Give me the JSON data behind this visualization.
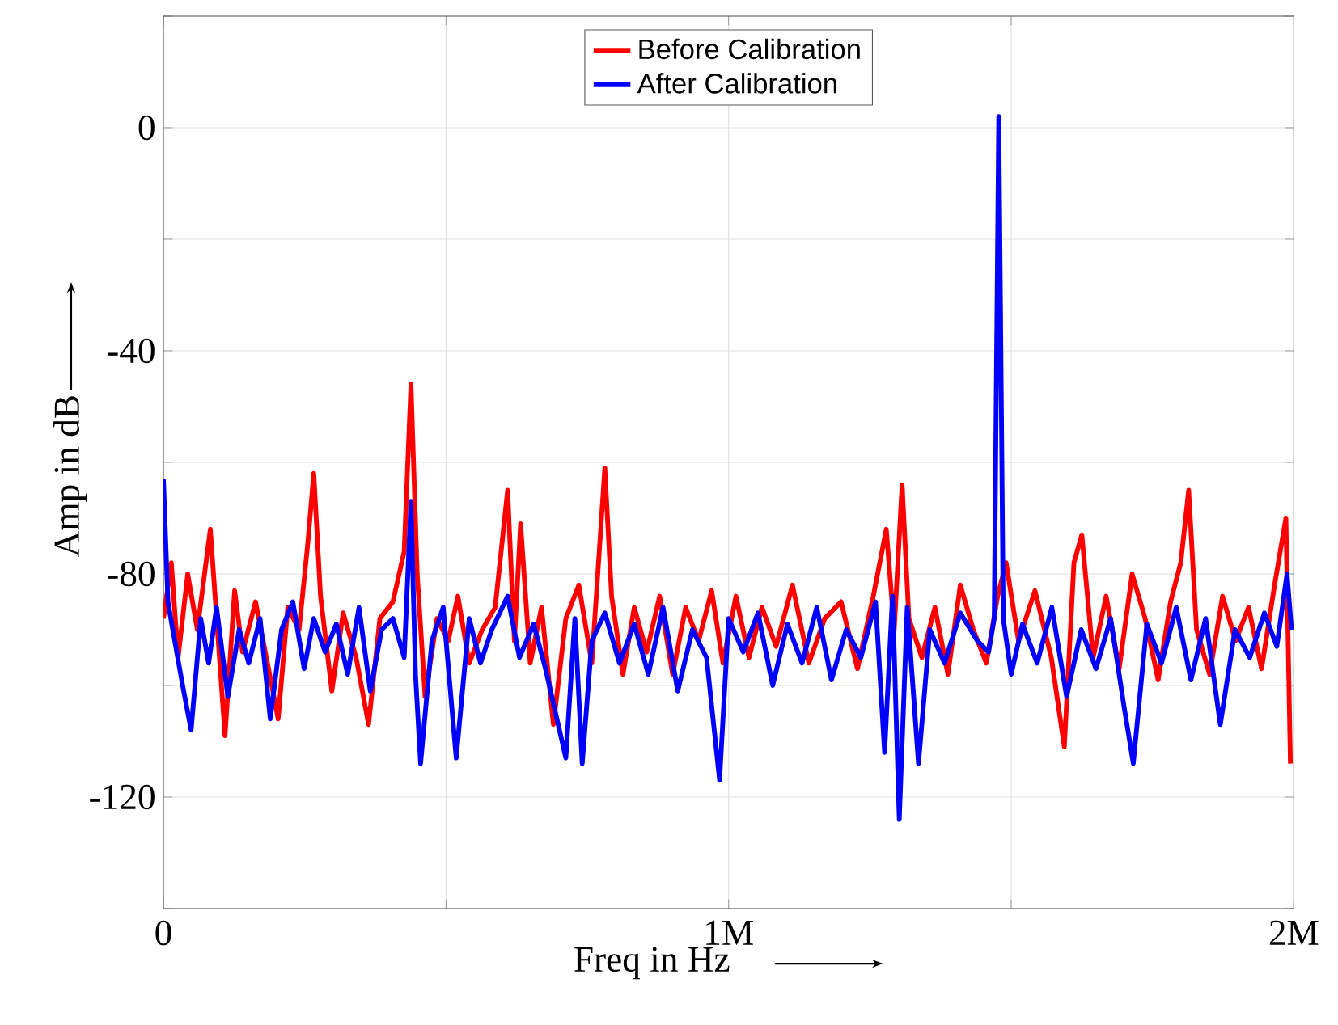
{
  "chart_data": {
    "type": "line",
    "xlabel": "Freq in Hz",
    "ylabel": "Amp in dB",
    "xlim": [
      0,
      2000000
    ],
    "ylim": [
      -140,
      20
    ],
    "xticks": [
      {
        "value": 0,
        "label": "0"
      },
      {
        "value": 500000,
        "label": null
      },
      {
        "value": 1000000,
        "label": "1M"
      },
      {
        "value": 1500000,
        "label": null
      },
      {
        "value": 2000000,
        "label": "2M"
      }
    ],
    "yticks": [
      {
        "value": -140,
        "label": null
      },
      {
        "value": -120,
        "label": "-120"
      },
      {
        "value": -100,
        "label": null
      },
      {
        "value": -80,
        "label": "-80"
      },
      {
        "value": -60,
        "label": null
      },
      {
        "value": -40,
        "label": "-40"
      },
      {
        "value": -20,
        "label": null
      },
      {
        "value": 0,
        "label": "0"
      },
      {
        "value": 20,
        "label": null
      }
    ],
    "grid": true,
    "legend": "top",
    "marker": "none",
    "line_style": "solid",
    "series": [
      {
        "name": "Before Calibration",
        "color": "#ff0000",
        "x": [
          0,
          14000,
          26000,
          43000,
          60000,
          83000,
          97000,
          109000,
          126000,
          140000,
          163000,
          186000,
          203000,
          220000,
          240000,
          255000,
          266000,
          278000,
          298000,
          318000,
          341000,
          363000,
          383000,
          406000,
          426000,
          438000,
          449000,
          463000,
          484000,
          504000,
          521000,
          541000,
          564000,
          587000,
          609000,
          621000,
          632000,
          649000,
          669000,
          690000,
          712000,
          735000,
          758000,
          781000,
          793000,
          813000,
          833000,
          855000,
          878000,
          901000,
          924000,
          947000,
          970000,
          990000,
          1013000,
          1036000,
          1059000,
          1084000,
          1113000,
          1142000,
          1170000,
          1199000,
          1228000,
          1256000,
          1279000,
          1293000,
          1307000,
          1319000,
          1342000,
          1365000,
          1388000,
          1410000,
          1433000,
          1456000,
          1476000,
          1491000,
          1513000,
          1542000,
          1571000,
          1594000,
          1611000,
          1625000,
          1645000,
          1668000,
          1691000,
          1714000,
          1737000,
          1760000,
          1782000,
          1800000,
          1814000,
          1828000,
          1851000,
          1874000,
          1897000,
          1920000,
          1943000,
          1966000,
          1986000,
          1994000
        ],
        "values": [
          -88,
          -78,
          -95,
          -80,
          -90,
          -72,
          -92,
          -109,
          -83,
          -94,
          -85,
          -97,
          -106,
          -86,
          -90,
          -75,
          -62,
          -84,
          -101,
          -87,
          -95,
          -107,
          -88,
          -85,
          -76,
          -46,
          -80,
          -102,
          -88,
          -92,
          -84,
          -96,
          -90,
          -86,
          -65,
          -92,
          -71,
          -96,
          -86,
          -107,
          -88,
          -82,
          -96,
          -61,
          -84,
          -98,
          -86,
          -94,
          -84,
          -98,
          -86,
          -92,
          -83,
          -96,
          -84,
          -95,
          -86,
          -93,
          -82,
          -96,
          -88,
          -85,
          -97,
          -84,
          -72,
          -90,
          -64,
          -88,
          -95,
          -86,
          -98,
          -82,
          -90,
          -96,
          -84,
          -78,
          -92,
          -83,
          -95,
          -111,
          -78,
          -73,
          -95,
          -84,
          -97,
          -80,
          -88,
          -99,
          -85,
          -78,
          -65,
          -90,
          -98,
          -84,
          -92,
          -86,
          -97,
          -82,
          -70,
          -114
        ]
      },
      {
        "name": "After Calibration",
        "color": "#0000ff",
        "x": [
          0,
          8000,
          20000,
          34000,
          49000,
          66000,
          80000,
          94000,
          114000,
          134000,
          151000,
          171000,
          189000,
          209000,
          229000,
          249000,
          266000,
          286000,
          306000,
          326000,
          346000,
          366000,
          386000,
          406000,
          426000,
          438000,
          446000,
          455000,
          475000,
          495000,
          518000,
          541000,
          561000,
          581000,
          609000,
          630000,
          655000,
          676000,
          712000,
          728000,
          741000,
          758000,
          781000,
          807000,
          833000,
          858000,
          884000,
          910000,
          936000,
          961000,
          984000,
          1000000,
          1026000,
          1052000,
          1078000,
          1104000,
          1130000,
          1156000,
          1182000,
          1208000,
          1234000,
          1260000,
          1276000,
          1290000,
          1302000,
          1316000,
          1336000,
          1356000,
          1382000,
          1410000,
          1440000,
          1460000,
          1470000,
          1478000,
          1486000,
          1500000,
          1520000,
          1546000,
          1572000,
          1598000,
          1624000,
          1650000,
          1676000,
          1700000,
          1716000,
          1740000,
          1766000,
          1792000,
          1818000,
          1844000,
          1870000,
          1896000,
          1922000,
          1948000,
          1970000,
          1988000,
          1996000
        ],
        "values": [
          -63,
          -85,
          -92,
          -100,
          -108,
          -88,
          -96,
          -86,
          -102,
          -90,
          -96,
          -88,
          -106,
          -90,
          -85,
          -97,
          -88,
          -94,
          -89,
          -98,
          -86,
          -101,
          -90,
          -88,
          -95,
          -67,
          -98,
          -114,
          -92,
          -86,
          -113,
          -88,
          -96,
          -90,
          -84,
          -95,
          -89,
          -97,
          -113,
          -88,
          -114,
          -92,
          -87,
          -96,
          -89,
          -98,
          -86,
          -101,
          -90,
          -95,
          -117,
          -88,
          -94,
          -87,
          -100,
          -89,
          -96,
          -86,
          -99,
          -90,
          -95,
          -85,
          -112,
          -84,
          -124,
          -86,
          -114,
          -90,
          -96,
          -87,
          -92,
          -94,
          -88,
          2,
          -88,
          -98,
          -89,
          -96,
          -86,
          -102,
          -90,
          -97,
          -88,
          -104,
          -114,
          -89,
          -96,
          -86,
          -99,
          -88,
          -107,
          -90,
          -95,
          -87,
          -93,
          -80,
          -90
        ]
      }
    ]
  }
}
